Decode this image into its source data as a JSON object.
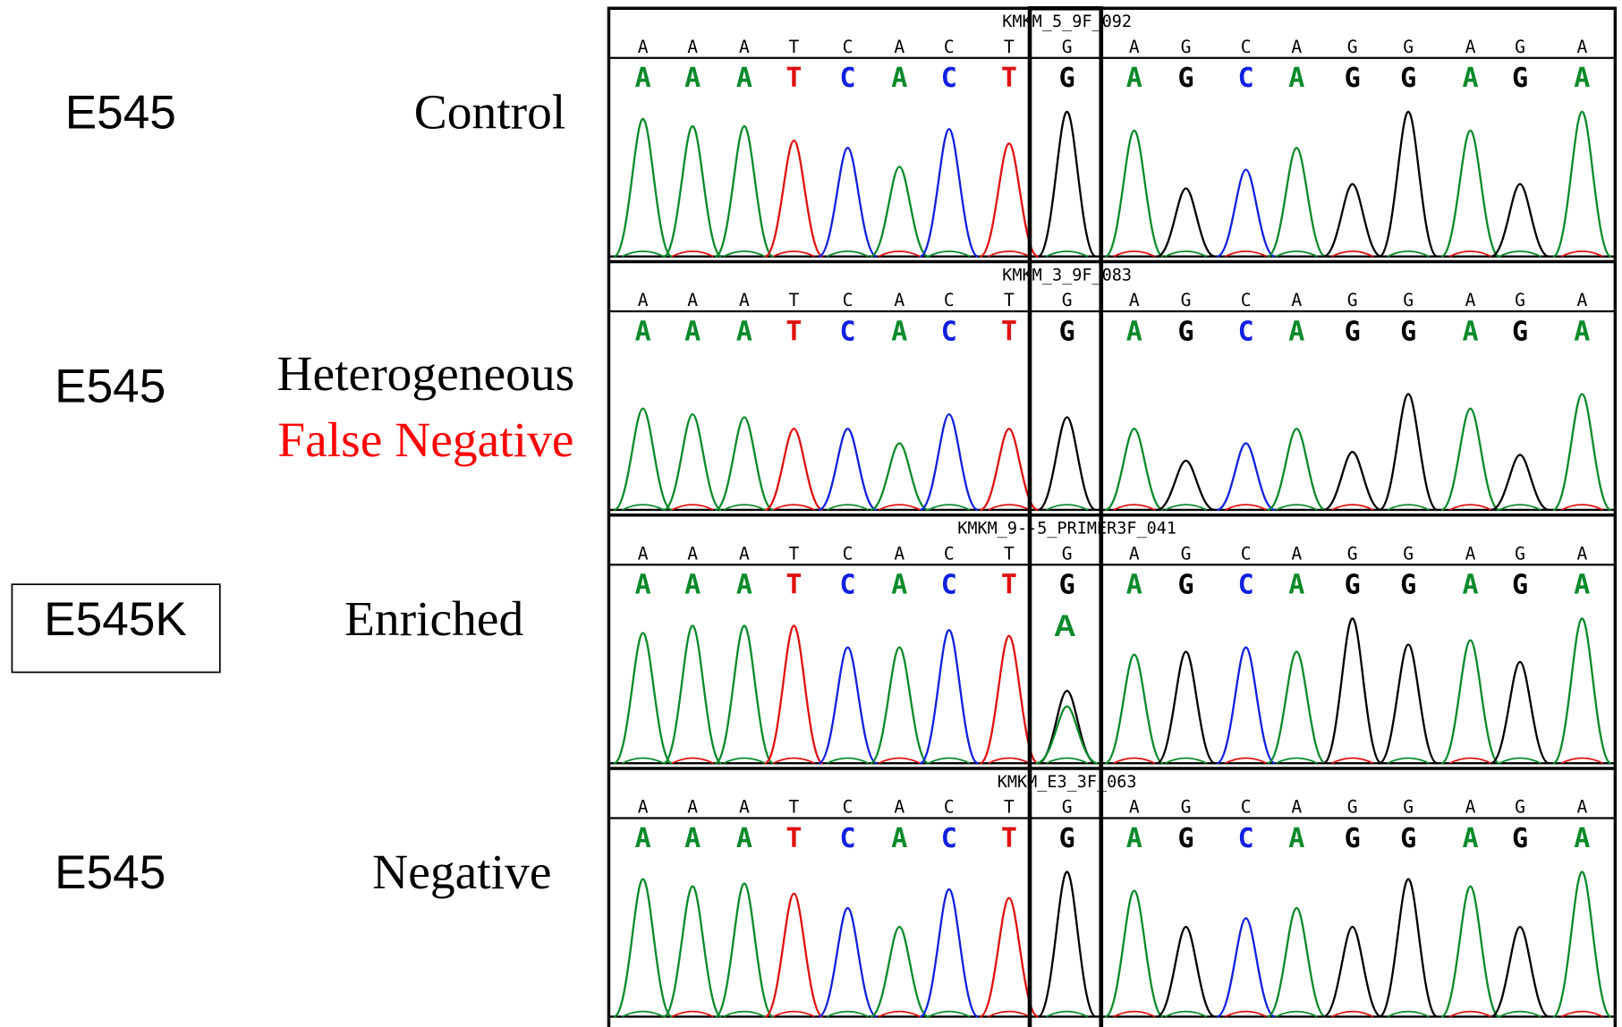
{
  "rows": [
    {
      "gene": "E545",
      "status": [
        "Control"
      ],
      "sample": "KMKM_5_9F_092",
      "reference": [
        "A",
        "A",
        "A",
        "T",
        "C",
        "A",
        "C",
        "T",
        "G",
        "A",
        "G",
        "C",
        "A",
        "G",
        "G",
        "A",
        "G",
        "A"
      ],
      "calls": [
        "A",
        "A",
        "A",
        "T",
        "C",
        "A",
        "C",
        "T",
        "G",
        "A",
        "G",
        "C",
        "A",
        "G",
        "G",
        "A",
        "G",
        "A"
      ]
    },
    {
      "gene": "E545",
      "status": [
        "Heterogeneous",
        "False Negative"
      ],
      "sample": "KMKM_3_9F_083",
      "reference": [
        "A",
        "A",
        "A",
        "T",
        "C",
        "A",
        "C",
        "T",
        "G",
        "A",
        "G",
        "C",
        "A",
        "G",
        "G",
        "A",
        "G",
        "A"
      ],
      "calls": [
        "A",
        "A",
        "A",
        "T",
        "C",
        "A",
        "C",
        "T",
        "G",
        "A",
        "G",
        "C",
        "A",
        "G",
        "G",
        "A",
        "G",
        "A"
      ]
    },
    {
      "gene": "E545K",
      "status": [
        "Enriched"
      ],
      "sample": "KMKM_9--5_PRIMER3F_041",
      "annotation": "A",
      "reference": [
        "A",
        "A",
        "A",
        "T",
        "C",
        "A",
        "C",
        "T",
        "G",
        "A",
        "G",
        "C",
        "A",
        "G",
        "G",
        "A",
        "G",
        "A"
      ],
      "calls": [
        "A",
        "A",
        "A",
        "T",
        "C",
        "A",
        "C",
        "T",
        "G",
        "A",
        "G",
        "C",
        "A",
        "G",
        "G",
        "A",
        "G",
        "A"
      ]
    },
    {
      "gene": "E545",
      "status": [
        "Negative"
      ],
      "sample": "KMKM_E3_3F_063",
      "reference": [
        "A",
        "A",
        "A",
        "T",
        "C",
        "A",
        "C",
        "T",
        "G",
        "A",
        "G",
        "C",
        "A",
        "G",
        "G",
        "A",
        "G",
        "A"
      ],
      "calls": [
        "A",
        "A",
        "A",
        "T",
        "C",
        "A",
        "C",
        "T",
        "G",
        "A",
        "G",
        "C",
        "A",
        "G",
        "G",
        "A",
        "G",
        "A"
      ]
    }
  ]
}
